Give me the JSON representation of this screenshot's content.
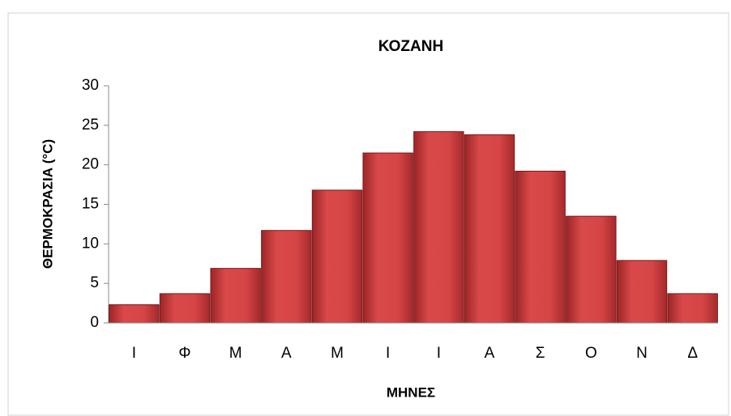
{
  "chart_data": {
    "type": "bar",
    "title": "ΚΟΖΑΝΗ",
    "x_label": "ΜΗΝΕΣ",
    "y_label": "ΘΕΡΜΟΚΡΑΣΙΑ (°C)",
    "categories": [
      "Ι",
      "Φ",
      "Μ",
      "Α",
      "Μ",
      "Ι",
      "Ι",
      "Α",
      "Σ",
      "Ο",
      "Ν",
      "Δ"
    ],
    "values": [
      2.3,
      3.7,
      6.9,
      11.7,
      16.8,
      21.5,
      24.2,
      23.8,
      19.2,
      13.5,
      7.9,
      3.7
    ],
    "color": "#c8393b",
    "ylim": [
      0,
      30
    ],
    "yticks": [
      0,
      5,
      10,
      15,
      20,
      25,
      30
    ],
    "grid": false
  }
}
